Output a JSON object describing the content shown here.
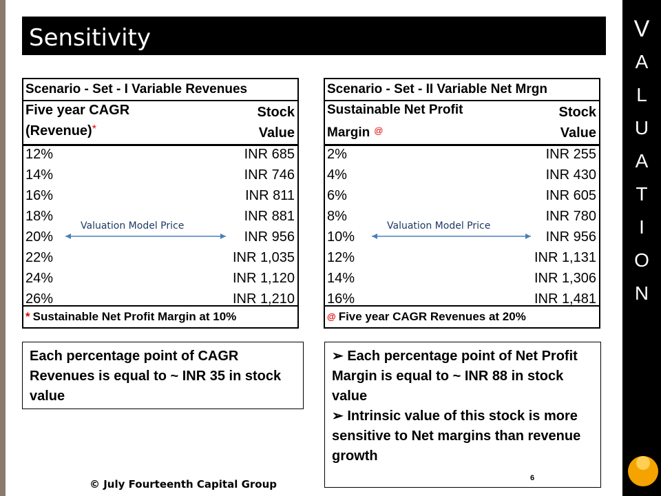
{
  "title": "Sensitivity",
  "side_label": [
    "V",
    "A",
    "L",
    "U",
    "A",
    "T",
    "I",
    "O",
    "N"
  ],
  "tables": [
    {
      "title": "Scenario - Set - I Variable Revenues",
      "header": {
        "col1_line1": "Five year CAGR",
        "col1_line2": "(Revenue)",
        "col1_mark": "*",
        "col2_line1": "Stock",
        "col2_line2": "Value"
      },
      "rows": [
        [
          "12%",
          "INR 685"
        ],
        [
          "14%",
          "INR 746"
        ],
        [
          "16%",
          "INR 811"
        ],
        [
          "18%",
          "INR 881"
        ],
        [
          "20%",
          "INR 956"
        ],
        [
          "22%",
          "INR 1,035"
        ],
        [
          "24%",
          "INR 1,120"
        ],
        [
          "26%",
          "INR 1,210"
        ]
      ],
      "annotation": "Valuation Model  Price",
      "footnote": {
        "mark": "*",
        "text": "Sustainable Net Profit Margin at 10%"
      }
    },
    {
      "title": "Scenario - Set - II Variable Net Mrgn",
      "header": {
        "col1_line1": "Sustainable Net Profit",
        "col1_line2": "Margin",
        "col1_mark": "@",
        "col2_line1": "Stock",
        "col2_line2": "Value"
      },
      "rows": [
        [
          "2%",
          "INR 255"
        ],
        [
          "4%",
          "INR 430"
        ],
        [
          "6%",
          "INR 605"
        ],
        [
          "8%",
          "INR 780"
        ],
        [
          "10%",
          "INR 956"
        ],
        [
          "12%",
          "INR 1,131"
        ],
        [
          "14%",
          "INR 1,306"
        ],
        [
          "16%",
          "INR 1,481"
        ]
      ],
      "annotation": "Valuation Model  Price",
      "footnote": {
        "mark": "@",
        "text": "Five year CAGR Revenues at 20%"
      }
    }
  ],
  "notes": [
    {
      "bullets": [
        "Each percentage point of CAGR Revenues is equal to ~ INR 35 in stock value"
      ]
    },
    {
      "bullets": [
        "Each percentage point of Net Profit Margin is equal to ~ INR 88 in stock value",
        "Intrinsic value of this stock is more sensitive to Net margins than revenue growth"
      ]
    }
  ],
  "footer": {
    "copyright": "© July Fourteenth Capital Group",
    "page_number": "6"
  }
}
